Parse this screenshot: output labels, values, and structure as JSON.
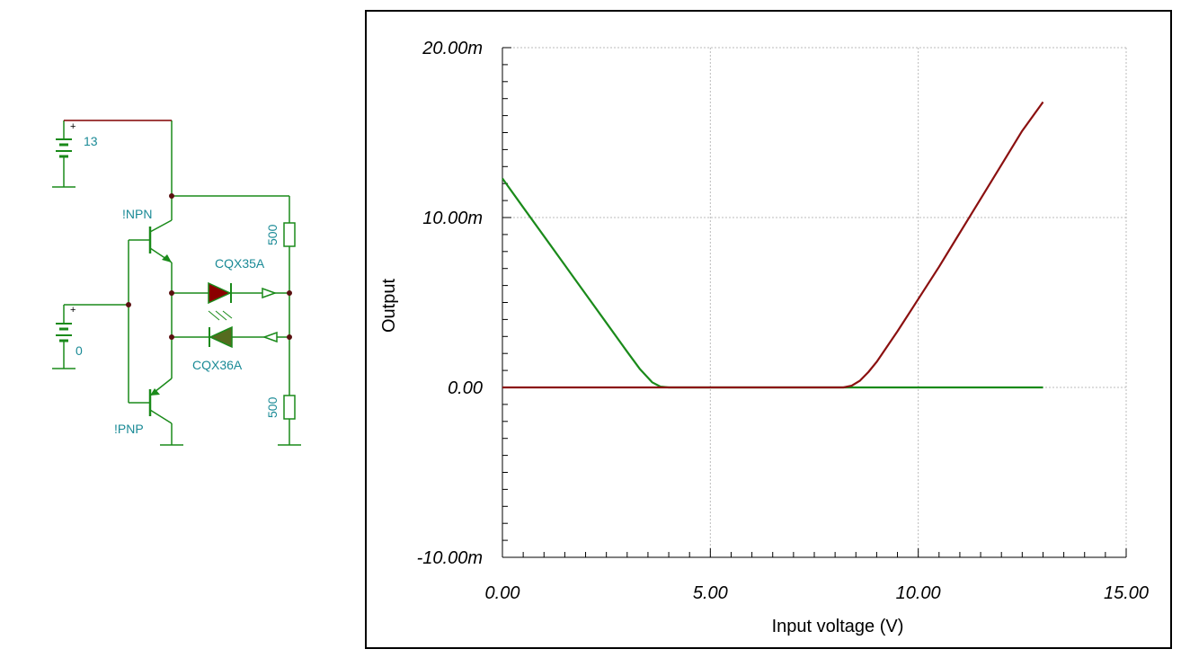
{
  "schematic": {
    "battery_top_value": "13",
    "battery_input_value": "0",
    "npn_label": "!NPN",
    "pnp_label": "!PNP",
    "led1_label": "CQX35A",
    "led2_label": "CQX36A",
    "res_top_value": "500",
    "res_bottom_value": "500",
    "colors": {
      "wire": "#1a8a1a",
      "wire_top": "#800000",
      "label": "#1a8a96",
      "led1": "#8b0000",
      "led2": "#556b1f"
    }
  },
  "chart_data": {
    "type": "line",
    "xlabel": "Input voltage (V)",
    "ylabel": "Output",
    "xlim": [
      0,
      15
    ],
    "ylim": [
      -0.01,
      0.02
    ],
    "x_ticks": [
      0,
      5,
      10,
      15
    ],
    "x_tick_labels": [
      "0.00",
      "5.00",
      "10.00",
      "15.00"
    ],
    "y_ticks": [
      -0.01,
      0,
      0.01,
      0.02
    ],
    "y_tick_labels": [
      "-10.00m",
      "0.00",
      "10.00m",
      "20.00m"
    ],
    "grid": true,
    "series": [
      {
        "color": "#1a8a1a",
        "x": [
          0,
          0.5,
          1,
          1.5,
          2,
          2.5,
          3,
          3.3,
          3.6,
          3.8,
          4.0,
          5,
          6,
          7,
          8,
          9,
          10,
          11,
          12,
          13
        ],
        "y": [
          0.0123,
          0.0106,
          0.0089,
          0.0072,
          0.0055,
          0.0038,
          0.0021,
          0.0011,
          0.0003,
          5e-05,
          0,
          0,
          0,
          0,
          0,
          0,
          0,
          0,
          0,
          0
        ]
      },
      {
        "color": "#8b1010",
        "x": [
          0,
          1,
          2,
          3,
          4,
          5,
          6,
          7,
          8,
          8.2,
          8.4,
          8.6,
          8.8,
          9,
          9.5,
          10,
          10.5,
          11,
          11.5,
          12,
          12.5,
          13
        ],
        "y": [
          0,
          0,
          0,
          0,
          0,
          0,
          0,
          0,
          0,
          0,
          0.0001,
          0.0004,
          0.0009,
          0.0015,
          0.0033,
          0.0052,
          0.0071,
          0.0091,
          0.0111,
          0.0131,
          0.0151,
          0.0168
        ]
      }
    ]
  }
}
